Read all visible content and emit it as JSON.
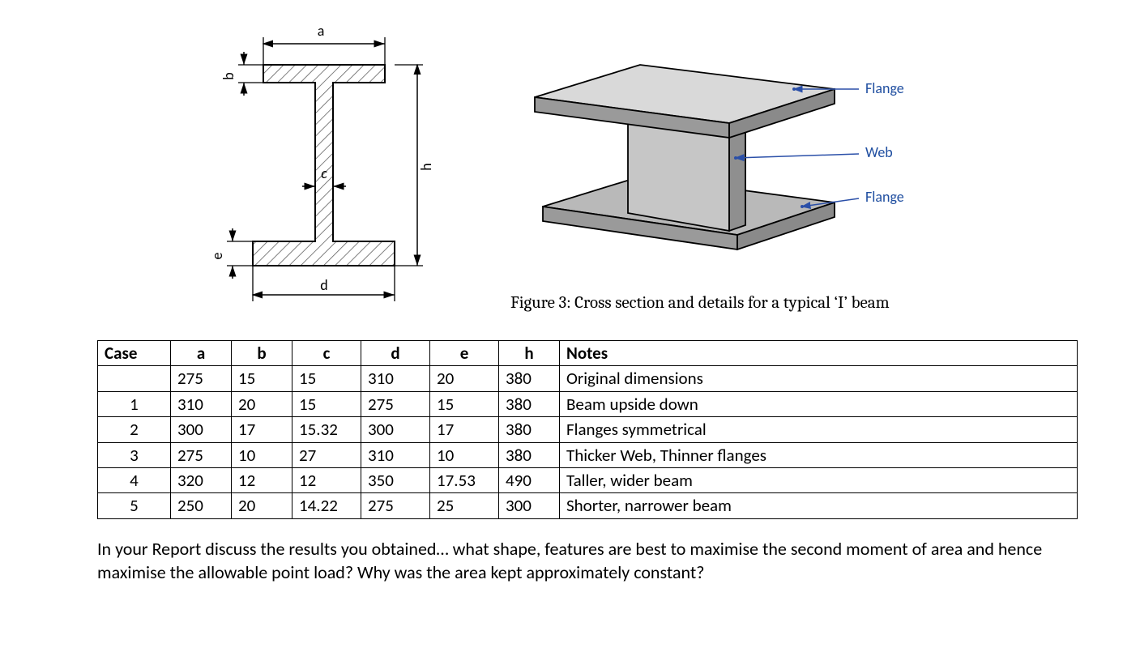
{
  "cross_section": {
    "labels": {
      "a": "a",
      "b": "b",
      "c": "c",
      "d": "d",
      "e": "e",
      "h": "h"
    },
    "hatch_stroke": "#555555",
    "outline_stroke": "#000000",
    "dimension_stroke": "#000000"
  },
  "beam3d": {
    "labels": {
      "flange_top": "Flange",
      "web": "Web",
      "flange_bottom": "Flange"
    },
    "body_fill": "#b9b9b9",
    "body_light": "#d9d9d9",
    "body_dark": "#9a9a9a",
    "outline": "#000000",
    "pointer_stroke": "#2a4fa8",
    "pointer_fill": "#2a4fa8",
    "label_color": "#1f4ea0"
  },
  "caption": "Figure 3: Cross section and details for a typical ‘I’ beam",
  "table": {
    "headers": [
      "Case",
      "a",
      "b",
      "c",
      "d",
      "e",
      "h",
      "Notes"
    ],
    "rows": [
      [
        "",
        "275",
        "15",
        "15",
        "310",
        "20",
        "380",
        "Original dimensions"
      ],
      [
        "1",
        "310",
        "20",
        "15",
        "275",
        "15",
        "380",
        "Beam upside down"
      ],
      [
        "2",
        "300",
        "17",
        "15.32",
        "300",
        "17",
        "380",
        "Flanges symmetrical"
      ],
      [
        "3",
        "275",
        "10",
        "27",
        "310",
        "10",
        "380",
        "Thicker Web, Thinner flanges"
      ],
      [
        "4",
        "320",
        "12",
        "12",
        "350",
        "17.53",
        "490",
        "Taller, wider beam"
      ],
      [
        "5",
        "250",
        "20",
        "14.22",
        "275",
        "25",
        "300",
        "Shorter, narrower beam"
      ]
    ]
  },
  "paragraph": "In your Report discuss the results you obtained… what shape, features are best to maximise the second moment of area and hence maximise the allowable point load?  Why was the area kept approximately constant?"
}
